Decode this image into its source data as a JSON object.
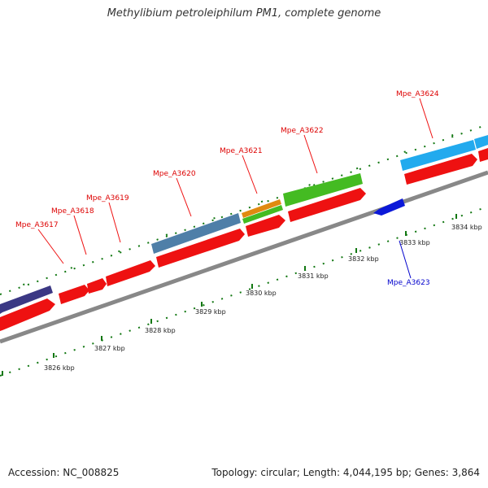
{
  "title": "Methylibium petroleiphilum PM1, complete genome",
  "footer": {
    "accession": "Accession: NC_008825",
    "summary": "Topology: circular; Length: 4,044,195 bp; Genes: 3,864"
  },
  "colors": {
    "backbone": "#888888",
    "tick": "#117711",
    "cds": "#ee1111",
    "forward_label": "#dd0000",
    "reverse_label": "#0000cc"
  },
  "scale_labels": [
    "3826 kbp",
    "3827 kbp",
    "3828 kbp",
    "3829 kbp",
    "3830 kbp",
    "3831 kbp",
    "3832 kbp",
    "3833 kbp",
    "3834 kbp"
  ],
  "gene_labels": [
    {
      "name": "Mpe_A3617",
      "strand": "forward"
    },
    {
      "name": "Mpe_A3618",
      "strand": "forward"
    },
    {
      "name": "Mpe_A3619",
      "strand": "forward"
    },
    {
      "name": "Mpe_A3620",
      "strand": "forward"
    },
    {
      "name": "Mpe_A3621",
      "strand": "forward"
    },
    {
      "name": "Mpe_A3622",
      "strand": "forward"
    },
    {
      "name": "Mpe_A3623",
      "strand": "reverse"
    },
    {
      "name": "Mpe_A3624",
      "strand": "forward"
    }
  ]
}
